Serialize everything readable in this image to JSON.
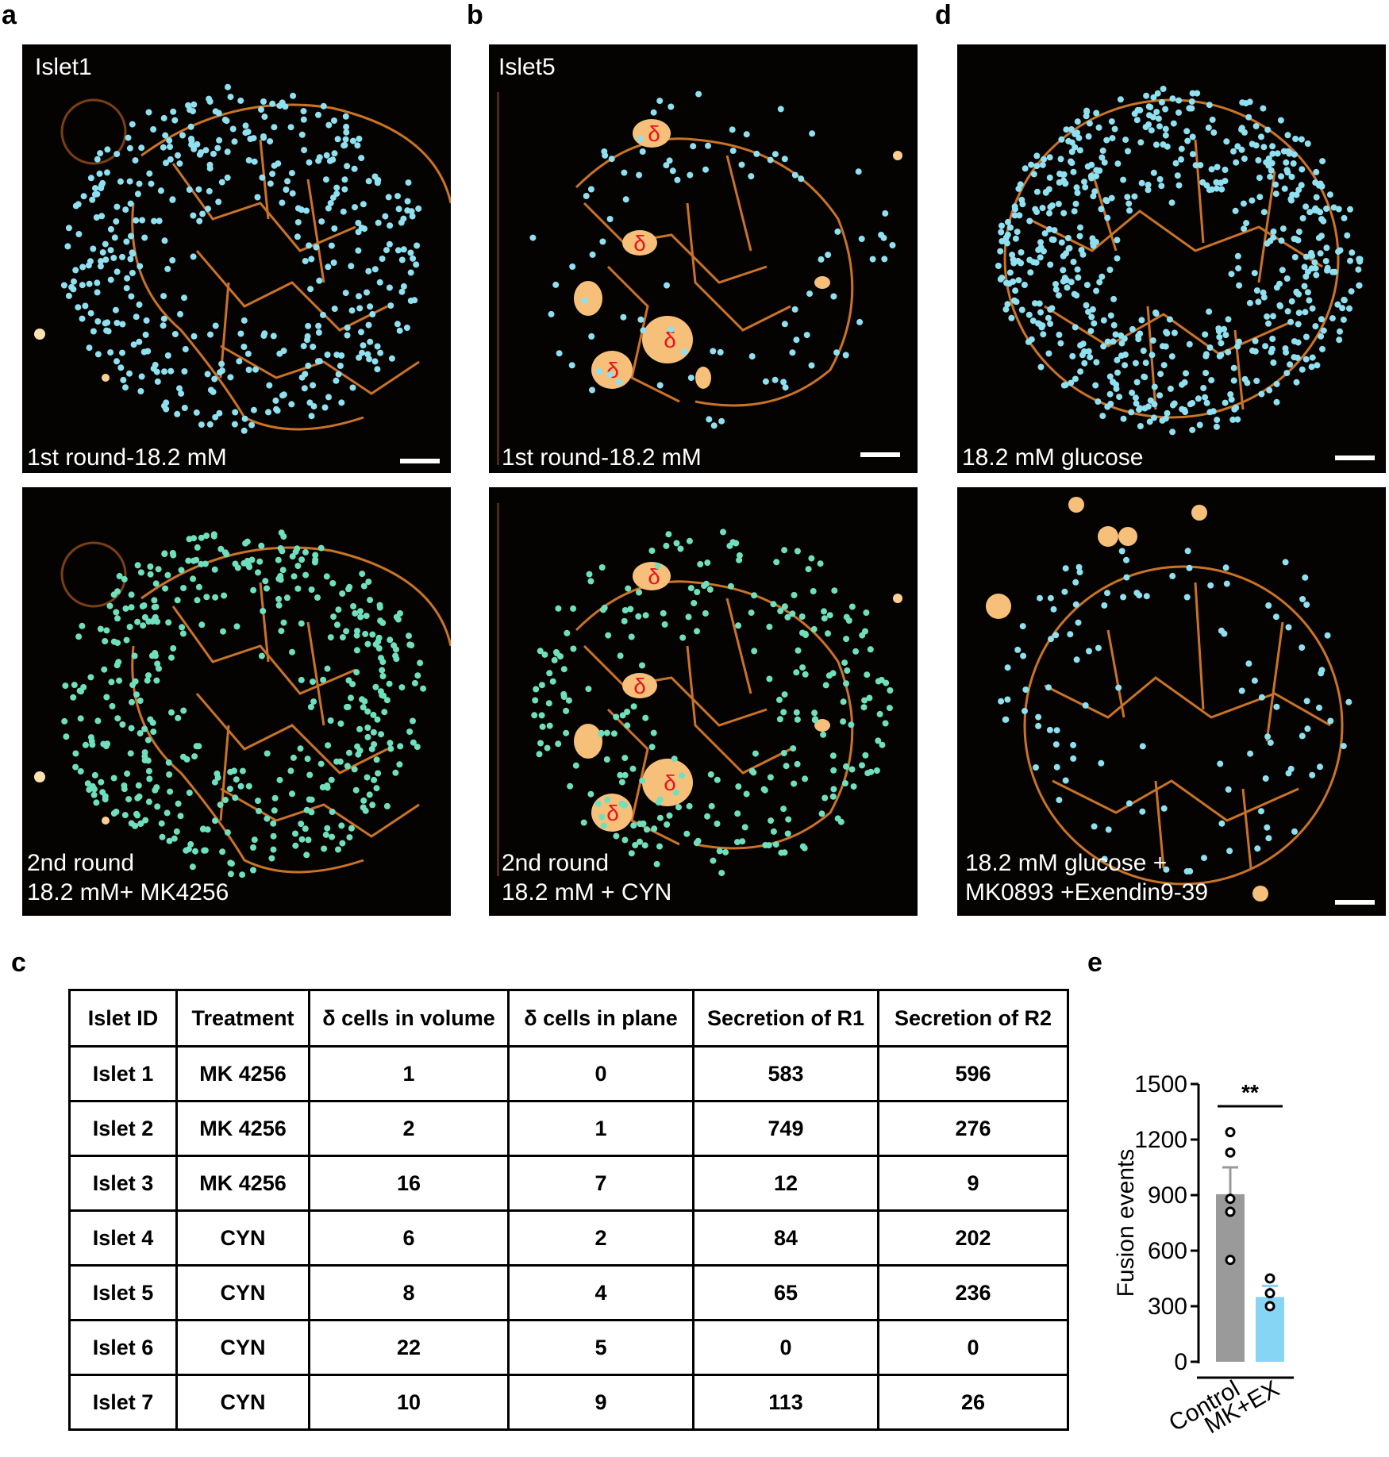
{
  "panel_letters": {
    "a": "a",
    "b": "b",
    "d": "d",
    "c": "c",
    "e": "e"
  },
  "images": {
    "a_top": {
      "islet": "Islet1",
      "caption": [
        "1st round-18.2 mM"
      ]
    },
    "a_bottom": {
      "islet": "",
      "caption": [
        "2nd round",
        "18.2 mM+ MK4256"
      ]
    },
    "b_top": {
      "islet": "Islet5",
      "caption": [
        "1st round-18.2 mM"
      ]
    },
    "b_bottom": {
      "islet": "",
      "caption": [
        "2nd round",
        "18.2 mM + CYN"
      ]
    },
    "d_top": {
      "islet": "",
      "caption": [
        "18.2 mM glucose"
      ]
    },
    "d_bottom": {
      "islet": "",
      "caption": [
        "18.2 mM glucose +",
        "MK0893 +Exendin9-39"
      ]
    },
    "delta_symbol": "δ",
    "colors": {
      "membrane": "#e0802a",
      "events_round1": "#8fe0f0",
      "events_round2": "#6fe0bd",
      "delta_label": "#e8141e"
    }
  },
  "table": {
    "headers": [
      "Islet ID",
      "Treatment",
      "δ cells in volume",
      "δ cells in plane",
      "Secretion of R1",
      "Secretion of R2"
    ],
    "rows": [
      [
        "Islet 1",
        "MK 4256",
        "1",
        "0",
        "583",
        "596"
      ],
      [
        "Islet 2",
        "MK 4256",
        "2",
        "1",
        "749",
        "276"
      ],
      [
        "Islet 3",
        "MK 4256",
        "16",
        "7",
        "12",
        "9"
      ],
      [
        "Islet 4",
        "CYN",
        "6",
        "2",
        "84",
        "202"
      ],
      [
        "Islet 5",
        "CYN",
        "8",
        "4",
        "65",
        "236"
      ],
      [
        "Islet 6",
        "CYN",
        "22",
        "5",
        "0",
        "0"
      ],
      [
        "Islet 7",
        "CYN",
        "10",
        "9",
        "113",
        "26"
      ]
    ]
  },
  "chart_data": {
    "type": "bar",
    "title": "",
    "xlabel": "",
    "ylabel": "Fusion events",
    "categories": [
      "Control",
      "MK+EX"
    ],
    "values": [
      905,
      350
    ],
    "errors": [
      145,
      60
    ],
    "points": [
      [
        1240,
        1130,
        880,
        810,
        550
      ],
      [
        450,
        370,
        300
      ]
    ],
    "bar_colors": [
      "#9a9a9a",
      "#87d5f5"
    ],
    "ylim": [
      0,
      1500
    ],
    "yticks": [
      0,
      300,
      600,
      900,
      1200,
      1500
    ],
    "significance": "**"
  }
}
